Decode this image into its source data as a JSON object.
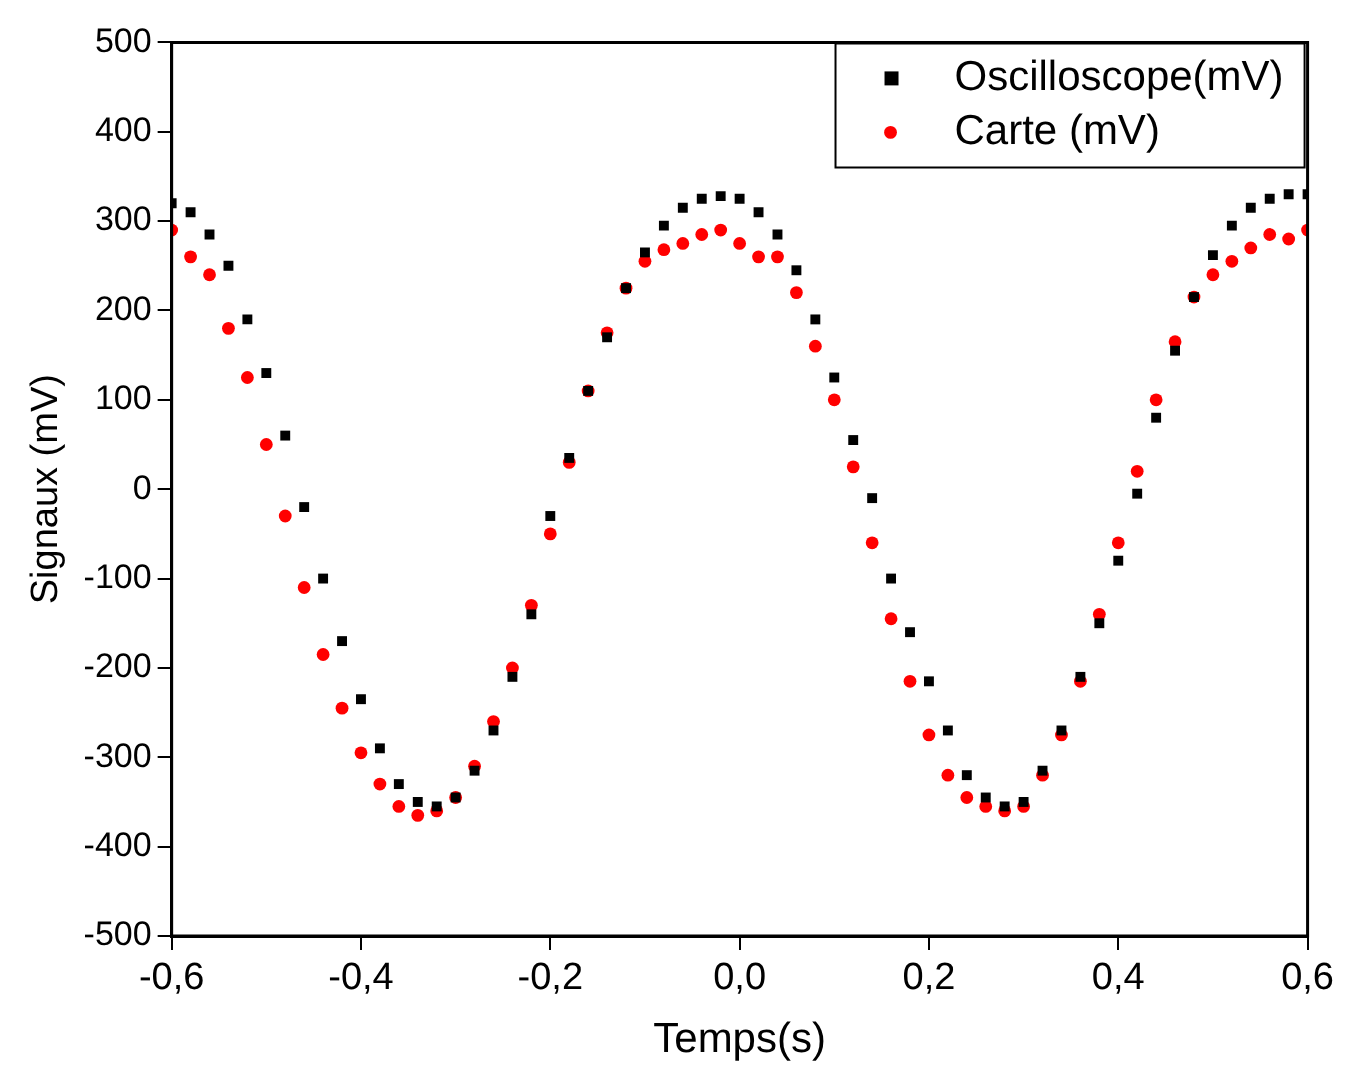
{
  "chart_data": {
    "type": "scatter",
    "xlabel": "Temps(s)",
    "ylabel": "Signaux (mV)",
    "xlim": [
      -0.6,
      0.6
    ],
    "xticks": [
      {
        "value": -0.6,
        "label": "-0,6"
      },
      {
        "value": -0.4,
        "label": "-0,4"
      },
      {
        "value": -0.2,
        "label": "-0,2"
      },
      {
        "value": 0,
        "label": "0,0"
      },
      {
        "value": 0.2,
        "label": "0,2"
      },
      {
        "value": 0.4,
        "label": "0,4"
      },
      {
        "value": 0.6,
        "label": "0,6"
      }
    ],
    "ylim": [
      -500,
      500
    ],
    "yticks": [
      -500,
      -400,
      -300,
      -200,
      -100,
      0,
      100,
      200,
      300,
      400,
      500
    ],
    "grid": false,
    "legend": "top right",
    "x": [
      -0.6,
      -0.58,
      -0.56,
      -0.54,
      -0.52,
      -0.5,
      -0.48,
      -0.46,
      -0.44,
      -0.42,
      -0.4,
      -0.38,
      -0.36,
      -0.34,
      -0.32,
      -0.3,
      -0.28,
      -0.26,
      -0.24,
      -0.22,
      -0.2,
      -0.18,
      -0.16,
      -0.14,
      -0.12,
      -0.1,
      -0.08,
      -0.06,
      -0.04,
      -0.02,
      0,
      0.02,
      0.04,
      0.06,
      0.08,
      0.1,
      0.12,
      0.14,
      0.16,
      0.18,
      0.2,
      0.22,
      0.24,
      0.26,
      0.28,
      0.3,
      0.32,
      0.34,
      0.36,
      0.38,
      0.4,
      0.42,
      0.44,
      0.46,
      0.48,
      0.5,
      0.52,
      0.54,
      0.56,
      0.58,
      0.6
    ],
    "series": [
      {
        "name": "Oscilloscope(mV)",
        "color": "#000000",
        "marker": "square",
        "values": [
          320,
          310,
          285,
          250,
          190,
          130,
          60,
          -20,
          -100,
          -170,
          -235,
          -290,
          -330,
          -350,
          -355,
          -345,
          -315,
          -270,
          -210,
          -140,
          -30,
          35,
          110,
          170,
          225,
          265,
          295,
          315,
          325,
          328,
          325,
          310,
          285,
          245,
          190,
          125,
          55,
          -10,
          -100,
          -160,
          -215,
          -270,
          -320,
          -345,
          -355,
          -350,
          -315,
          -270,
          -210,
          -150,
          -80,
          -5,
          80,
          155,
          215,
          262,
          295,
          315,
          325,
          330,
          330
        ]
      },
      {
        "name": "Carte (mV)",
        "color": "#ff0000",
        "marker": "circle",
        "values": [
          290,
          260,
          240,
          180,
          125,
          50,
          -30,
          -110,
          -185,
          -245,
          -295,
          -330,
          -355,
          -365,
          -360,
          -345,
          -310,
          -260,
          -200,
          -130,
          -50,
          30,
          110,
          175,
          225,
          255,
          268,
          275,
          285,
          290,
          275,
          260,
          260,
          220,
          160,
          100,
          25,
          -60,
          -145,
          -215,
          -275,
          -320,
          -345,
          -355,
          -360,
          -355,
          -320,
          -275,
          -215,
          -140,
          -60,
          20,
          100,
          165,
          215,
          240,
          255,
          270,
          285,
          280,
          290
        ]
      }
    ]
  }
}
